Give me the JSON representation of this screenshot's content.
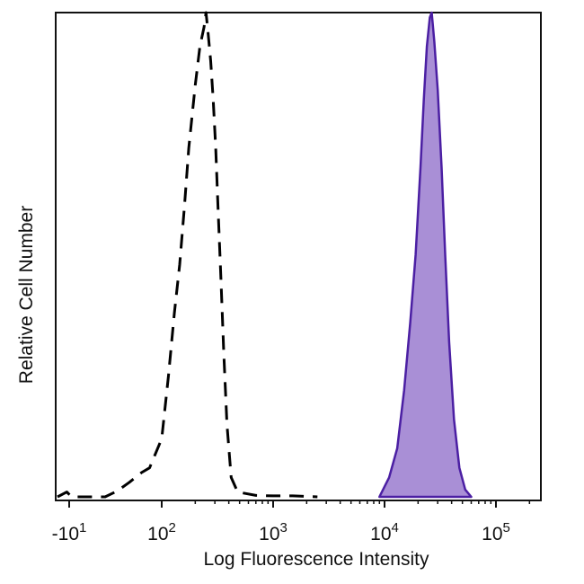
{
  "chart_data": {
    "type": "histogram",
    "title": "",
    "xlabel": "Log Fluorescence Intensity",
    "ylabel": "Relative Cell Number",
    "x_scale": "biexponential",
    "xlim": [
      -20,
      300000
    ],
    "ylim": [
      0,
      1
    ],
    "grid": false,
    "legend": "none",
    "x_ticks": [
      {
        "value": -10,
        "base": "-10",
        "exp": "1"
      },
      {
        "value": 100,
        "base": "10",
        "exp": "2"
      },
      {
        "value": 1000,
        "base": "10",
        "exp": "3"
      },
      {
        "value": 10000,
        "base": "10",
        "exp": "4"
      },
      {
        "value": 100000,
        "base": "10",
        "exp": "5"
      }
    ],
    "series": [
      {
        "style": "dashed",
        "color": "#000000",
        "fill": "none",
        "points": [
          [
            -20,
            0
          ],
          [
            -12,
            0.01
          ],
          [
            -8,
            0
          ],
          [
            30,
            0
          ],
          [
            45,
            0.012
          ],
          [
            60,
            0.03
          ],
          [
            75,
            0.05
          ],
          [
            85,
            0.06
          ],
          [
            100,
            0.12
          ],
          [
            115,
            0.25
          ],
          [
            130,
            0.38
          ],
          [
            145,
            0.48
          ],
          [
            160,
            0.6
          ],
          [
            175,
            0.72
          ],
          [
            200,
            0.85
          ],
          [
            220,
            0.93
          ],
          [
            240,
            0.97
          ],
          [
            250,
            1.0
          ],
          [
            260,
            0.96
          ],
          [
            275,
            0.9
          ],
          [
            290,
            0.82
          ],
          [
            305,
            0.72
          ],
          [
            320,
            0.6
          ],
          [
            340,
            0.45
          ],
          [
            360,
            0.3
          ],
          [
            385,
            0.15
          ],
          [
            420,
            0.04
          ],
          [
            480,
            0.01
          ],
          [
            700,
            0.003
          ],
          [
            1000,
            0.002
          ],
          [
            1500,
            0.002
          ],
          [
            2500,
            0
          ]
        ]
      },
      {
        "style": "solid",
        "color": "#4b1fa3",
        "fill": "#a98fd6",
        "points": [
          [
            9000,
            0
          ],
          [
            11000,
            0.04
          ],
          [
            13000,
            0.1
          ],
          [
            15000,
            0.22
          ],
          [
            17000,
            0.36
          ],
          [
            19000,
            0.5
          ],
          [
            21000,
            0.68
          ],
          [
            22500,
            0.82
          ],
          [
            24000,
            0.93
          ],
          [
            25500,
            0.99
          ],
          [
            26500,
            1.0
          ],
          [
            28000,
            0.94
          ],
          [
            30000,
            0.84
          ],
          [
            32500,
            0.68
          ],
          [
            35000,
            0.5
          ],
          [
            38000,
            0.32
          ],
          [
            42000,
            0.16
          ],
          [
            47000,
            0.06
          ],
          [
            53000,
            0.015
          ],
          [
            60000,
            0
          ]
        ]
      }
    ]
  }
}
